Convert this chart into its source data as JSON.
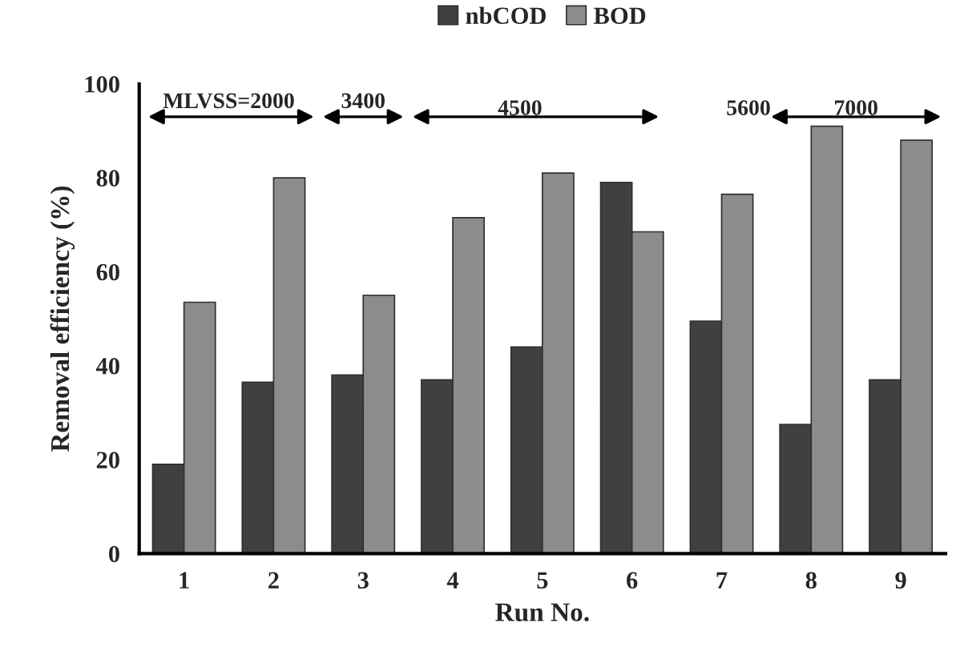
{
  "chart_data": {
    "type": "bar",
    "xlabel": "Run No.",
    "ylabel": "Removal efficiency (%)",
    "categories": [
      "1",
      "2",
      "3",
      "4",
      "5",
      "6",
      "7",
      "8",
      "9"
    ],
    "series": [
      {
        "name": "nbCOD",
        "color": "#404040",
        "values": [
          19,
          36.5,
          38,
          37,
          44,
          79,
          49.5,
          27.5,
          37
        ]
      },
      {
        "name": "BOD",
        "color": "#8c8c8c",
        "values": [
          53.5,
          80,
          55,
          71.5,
          81,
          68.5,
          76.5,
          91,
          88
        ]
      }
    ],
    "ylim": [
      0,
      100
    ],
    "yticks": [
      0,
      20,
      40,
      60,
      80,
      100
    ],
    "grid": false,
    "legend": "top",
    "annotations": [
      "MLVSS=2000",
      "3400",
      "4500",
      "5600",
      "7000"
    ]
  }
}
